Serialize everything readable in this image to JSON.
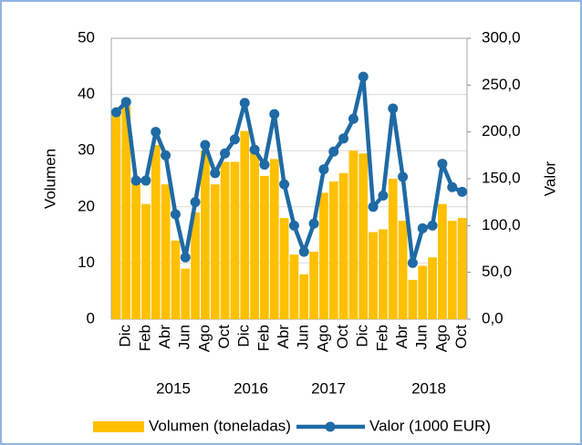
{
  "chart_data": {
    "type": "bar_line",
    "categories": [
      null,
      "Dic",
      null,
      "Feb",
      null,
      "Abr",
      null,
      "Jun",
      null,
      "Ago",
      null,
      "Oct",
      null,
      "Dic",
      null,
      "Feb",
      null,
      "Abr",
      null,
      "Jun",
      null,
      "Ago",
      null,
      "Oct",
      null,
      "Dic",
      null,
      "Feb",
      null,
      "Abr",
      null,
      "Jun",
      null,
      "Ago",
      null,
      "Oct"
    ],
    "year_groups": [
      "2015",
      "2016",
      "2017",
      "2018"
    ],
    "y_label": "Volumen",
    "y2_label": "Valor",
    "series": [
      {
        "name": "Volumen (toneladas)",
        "color": "#ffc000",
        "type": "bar",
        "values": [
          37,
          38,
          25,
          20.5,
          31,
          24,
          14,
          9,
          19,
          30,
          24,
          28,
          28,
          33.5,
          30,
          25.5,
          28.5,
          18,
          11.5,
          8,
          12,
          22.5,
          24.5,
          26,
          30,
          29.5,
          15.5,
          16,
          25,
          17.5,
          7,
          9.5,
          11,
          20.5,
          17.5,
          18
        ]
      },
      {
        "name": "Valor (1000 EUR)",
        "color": "#1f6aa5",
        "type": "line",
        "axis": "y2",
        "values": [
          221,
          232,
          148,
          148,
          200,
          175,
          112,
          66,
          125,
          186,
          156,
          177,
          192,
          231,
          181,
          165,
          219,
          144,
          100,
          72,
          102,
          160,
          179,
          193,
          214,
          259,
          120,
          132,
          225,
          152,
          60,
          97,
          100,
          166,
          141,
          136
        ]
      }
    ],
    "ylim": [
      0,
      50
    ],
    "yticks": [
      0,
      10,
      20,
      30,
      40,
      50
    ],
    "y2lim": [
      0,
      300
    ],
    "y2ticks": [
      {
        "value": 0,
        "label": "0,0"
      },
      {
        "value": 50,
        "label": "50,0"
      },
      {
        "value": 100,
        "label": "100,0"
      },
      {
        "value": 150,
        "label": "150,0"
      },
      {
        "value": 200,
        "label": "200,0"
      },
      {
        "value": 250,
        "label": "250,0"
      },
      {
        "value": 300,
        "label": "300,0"
      }
    ],
    "grid": true
  }
}
